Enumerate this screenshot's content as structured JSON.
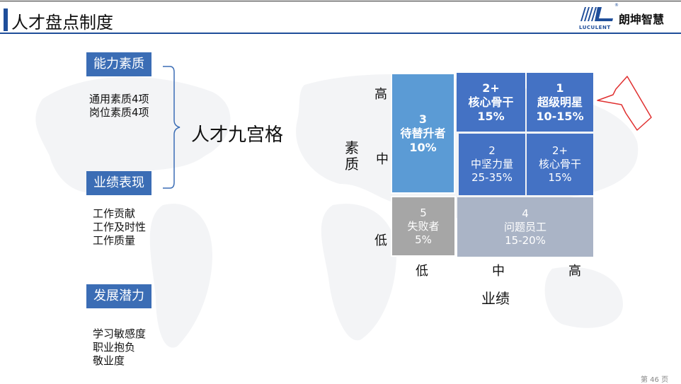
{
  "header": {
    "title": "人才盘点制度"
  },
  "logo": {
    "en": "LUCULENT",
    "cn": "朗坤智慧",
    "reg": "®"
  },
  "categories": [
    {
      "label": "能力素质",
      "items": [
        "通用素质4项",
        "岗位素质4项"
      ]
    },
    {
      "label": "业绩表现",
      "items": [
        "工作贡献",
        "工作及时性",
        "工作质量"
      ]
    },
    {
      "label": "发展潜力",
      "items": [
        "学习敏感度",
        "职业抱负",
        "敬业度"
      ]
    }
  ],
  "nine_grid_title": "人才九宫格",
  "grid": {
    "cells": {
      "c3": {
        "num": "3",
        "name": "待替升者",
        "pct": "10%"
      },
      "c2plus_top": {
        "num": "2+",
        "name": "核心骨干",
        "pct": "15%"
      },
      "c1": {
        "num": "1",
        "name": "超级明星",
        "pct": "10-15%"
      },
      "c2": {
        "num": "2",
        "name": "中坚力量",
        "pct": "25-35%"
      },
      "c2plus_mid": {
        "num": "2+",
        "name": "核心骨干",
        "pct": "15%"
      },
      "c5": {
        "num": "5",
        "name": "失败者",
        "pct": "5%"
      },
      "c4": {
        "num": "4",
        "name": "问题员工",
        "pct": "15-20%"
      }
    },
    "y_axis_title": "素质",
    "x_axis_title": "业绩",
    "y_levels": [
      "高",
      "中",
      "低"
    ],
    "x_levels": [
      "低",
      "中",
      "高"
    ],
    "colors": {
      "light_blue": "#5b9bd5",
      "blue": "#4472c4",
      "gray": "#a6a6a6",
      "gray_blue": "#aab4c6"
    }
  },
  "footer": {
    "page": "第 46 页"
  }
}
